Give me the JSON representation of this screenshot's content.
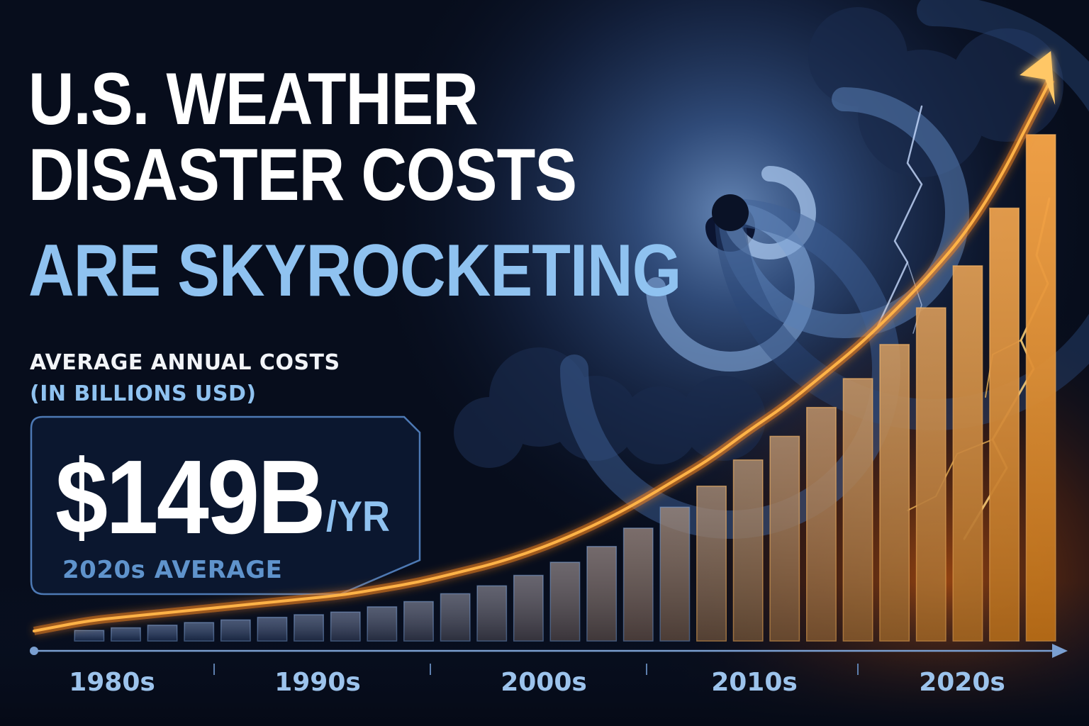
{
  "headline": {
    "line1": "U.S. WEATHER",
    "line2": "DISASTER COSTS",
    "line3": "ARE SKYROCKETING"
  },
  "subtitle": {
    "line1": "AVERAGE ANNUAL COSTS",
    "line2": "(IN BILLIONS USD)"
  },
  "stat": {
    "value": "$149B",
    "unit": "/YR",
    "caption": "2020s AVERAGE"
  },
  "colors": {
    "accent_blue": "#8fc2f0",
    "bar_cool": "#2b4a86",
    "bar_hot": "#f5901e",
    "curve": "#ffb347",
    "background": "#070d1c"
  },
  "icons": [
    "hurricane-swirl-icon",
    "lightning-icon",
    "trend-arrow-icon"
  ],
  "chart_data": {
    "type": "bar",
    "title": "",
    "xlabel": "",
    "ylabel": "",
    "tick_labels": [
      "1980s",
      "1990s",
      "2000s",
      "2010s",
      "2020s"
    ],
    "ylim": [
      0,
      220
    ],
    "grid": false,
    "series": [
      {
        "values": [
          4,
          5,
          6,
          7,
          8,
          9,
          10,
          11,
          13,
          15,
          18,
          21,
          25,
          30,
          36,
          43,
          51,
          59,
          69,
          78,
          89,
          100,
          113,
          127,
          143,
          165,
          193
        ]
      }
    ],
    "trend_arrow": true
  }
}
